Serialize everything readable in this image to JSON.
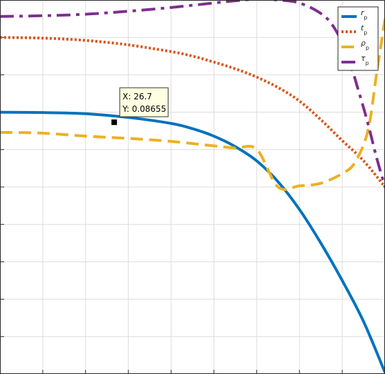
{
  "chart_data": {
    "type": "line",
    "title": "",
    "xlabel": "",
    "ylabel": "",
    "xlim": [
      0,
      90
    ],
    "ylim": [
      -0.25,
      0.25
    ],
    "grid": true,
    "legend_position": "top-right",
    "series": [
      {
        "name": "r_p",
        "legend_main": "r",
        "legend_sub": "p",
        "color": "#0072BD",
        "dash": "solid",
        "x": [
          0,
          10,
          20,
          30,
          40,
          45,
          50,
          55,
          60,
          65,
          70,
          75,
          80,
          85,
          90
        ],
        "y": [
          0.1,
          0.0995,
          0.098,
          0.093,
          0.085,
          0.078,
          0.068,
          0.054,
          0.035,
          0.007,
          -0.03,
          -0.075,
          -0.125,
          -0.18,
          -0.248
        ]
      },
      {
        "name": "t_p",
        "legend_main": "t",
        "legend_sub": "p",
        "color": "#D95319",
        "dash": "dotted",
        "x": [
          0,
          10,
          20,
          30,
          40,
          45,
          50,
          55,
          60,
          65,
          70,
          75,
          80,
          85,
          90
        ],
        "y": [
          0.2,
          0.199,
          0.196,
          0.19,
          0.181,
          0.175,
          0.167,
          0.158,
          0.147,
          0.133,
          0.115,
          0.09,
          0.062,
          0.035,
          0.0
        ]
      },
      {
        "name": "rho_p",
        "legend_main": "ρ",
        "legend_sub": "p",
        "color": "#EDB120",
        "dash": "dashed",
        "x": [
          0,
          10,
          20,
          30,
          40,
          50,
          55,
          60,
          65,
          70,
          75,
          80,
          83,
          86,
          88,
          90
        ],
        "y": [
          0.073,
          0.072,
          0.068,
          0.065,
          0.061,
          0.055,
          0.052,
          0.0505,
          0.0,
          0.0015,
          0.005,
          0.018,
          0.033,
          0.075,
          0.15,
          0.225
        ]
      },
      {
        "name": "tau_p",
        "legend_main": "τ",
        "legend_sub": "p",
        "color": "#7E2F8E",
        "dash": "dashdot",
        "x": [
          0,
          10,
          20,
          30,
          40,
          50,
          55,
          60,
          65,
          70,
          75,
          78,
          81,
          84,
          86,
          88,
          90
        ],
        "y": [
          0.228,
          0.229,
          0.231,
          0.235,
          0.24,
          0.246,
          0.249,
          0.251,
          0.25,
          0.246,
          0.232,
          0.214,
          0.18,
          0.125,
          0.085,
          0.04,
          0.0
        ]
      }
    ],
    "datatip": {
      "x": 26.7,
      "y": 0.08655,
      "x_label": "X: 26.7",
      "y_label": "Y: 0.08655"
    }
  }
}
